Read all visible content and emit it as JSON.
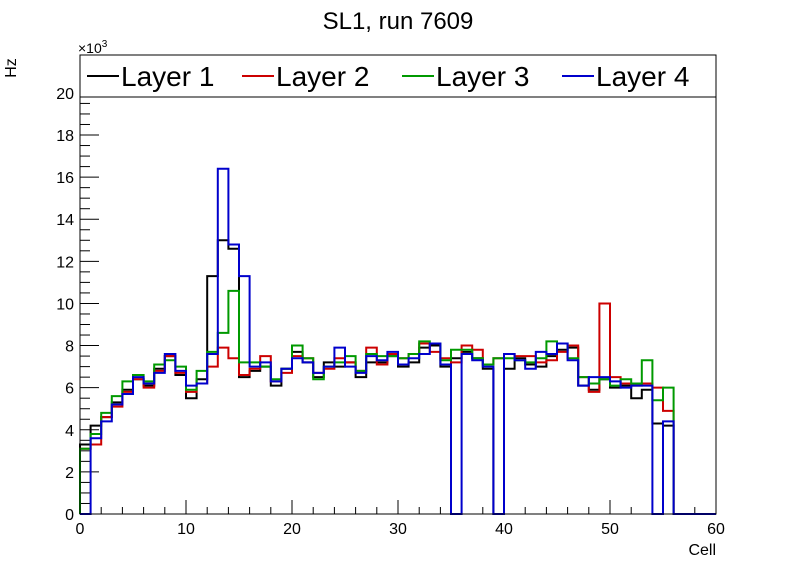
{
  "chart_data": {
    "type": "step-histogram",
    "title": "SL1, run 7609",
    "xlabel": "Cell",
    "ylabel": "Hz",
    "y_multiplier_base": "×10",
    "y_multiplier_exp": "3",
    "xlim": [
      0,
      60
    ],
    "ylim": [
      0,
      21.8
    ],
    "bin_width": 1,
    "x_ticks": [
      0,
      10,
      20,
      30,
      40,
      50,
      60
    ],
    "y_ticks": [
      0,
      2,
      4,
      6,
      8,
      10,
      12,
      14,
      16,
      18,
      20
    ],
    "legend_position": "top",
    "series": [
      {
        "name": "Layer 1",
        "color": "#000000",
        "values": [
          3.3,
          4.2,
          4.6,
          5.3,
          5.9,
          6.4,
          6.1,
          6.9,
          7.5,
          6.6,
          5.5,
          6.4,
          11.3,
          13.0,
          12.6,
          6.5,
          6.8,
          7.0,
          6.1,
          6.9,
          7.7,
          7.2,
          6.5,
          7.2,
          7.0,
          7.2,
          6.5,
          7.2,
          7.2,
          7.5,
          7.0,
          7.2,
          7.9,
          8.0,
          7.0,
          7.4,
          7.7,
          7.4,
          6.9,
          0.0,
          6.9,
          7.4,
          7.1,
          7.0,
          7.5,
          7.8,
          7.9,
          6.1,
          5.9,
          6.4,
          6.0,
          6.1,
          5.5,
          5.9,
          4.3,
          4.2,
          0,
          0,
          0,
          0
        ]
      },
      {
        "name": "Layer 2",
        "color": "#cc0000",
        "values": [
          3.1,
          3.3,
          4.6,
          5.1,
          5.8,
          6.4,
          6.0,
          6.8,
          7.5,
          6.7,
          5.8,
          6.2,
          7.0,
          7.9,
          7.4,
          6.6,
          6.9,
          7.5,
          6.3,
          6.7,
          7.5,
          7.4,
          6.7,
          6.9,
          7.4,
          7.2,
          6.8,
          7.9,
          7.1,
          7.6,
          7.4,
          7.6,
          8.1,
          7.7,
          7.4,
          7.2,
          8.0,
          7.8,
          7.1,
          7.4,
          7.6,
          7.5,
          7.5,
          7.2,
          7.3,
          7.7,
          8.0,
          6.5,
          5.8,
          10.0,
          6.5,
          6.2,
          6.1,
          6.2,
          6.0,
          4.9,
          0,
          0,
          0,
          0
        ]
      },
      {
        "name": "Layer 3",
        "color": "#009900",
        "values": [
          3.1,
          3.8,
          4.8,
          5.6,
          6.3,
          6.6,
          6.3,
          7.1,
          7.3,
          7.0,
          5.9,
          6.8,
          7.7,
          8.6,
          10.6,
          7.2,
          7.2,
          7.0,
          6.4,
          6.9,
          8.0,
          7.4,
          6.4,
          7.0,
          7.2,
          7.5,
          6.8,
          7.6,
          7.5,
          7.5,
          7.4,
          7.6,
          8.2,
          8.1,
          7.3,
          7.8,
          7.8,
          7.4,
          7.1,
          7.4,
          7.4,
          7.3,
          7.2,
          7.4,
          8.2,
          8.1,
          7.4,
          6.5,
          6.2,
          6.4,
          6.1,
          6.4,
          6.2,
          7.3,
          5.4,
          6.0,
          0,
          0,
          0,
          0
        ]
      },
      {
        "name": "Layer 4",
        "color": "#0000cc",
        "values": [
          0.0,
          3.6,
          4.4,
          5.2,
          5.7,
          6.5,
          6.2,
          6.7,
          7.6,
          6.8,
          6.1,
          6.2,
          7.6,
          16.4,
          12.8,
          11.3,
          7.0,
          7.2,
          6.3,
          6.9,
          7.4,
          7.2,
          6.7,
          7.0,
          7.9,
          7.0,
          6.7,
          7.5,
          7.3,
          7.7,
          7.1,
          7.4,
          7.6,
          8.1,
          7.1,
          0.0,
          7.6,
          7.3,
          7.0,
          0.0,
          7.6,
          7.3,
          6.9,
          7.7,
          7.6,
          8.1,
          7.3,
          6.1,
          6.5,
          6.5,
          6.3,
          6.0,
          6.1,
          6.1,
          0.0,
          4.4,
          0,
          0,
          0,
          0
        ]
      }
    ]
  }
}
